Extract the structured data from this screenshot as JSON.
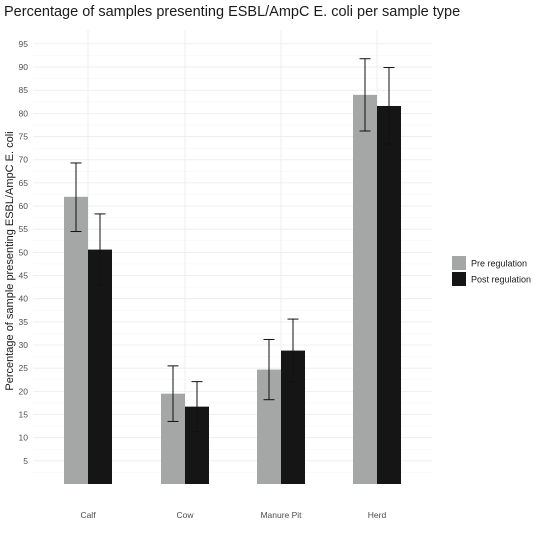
{
  "chart_data": {
    "type": "bar",
    "title": "Percentage of samples presenting ESBL/AmpC E. coli per sample type",
    "xlabel": "",
    "ylabel": "Percentage of sample presenting ESBL/AmpC E. coli",
    "ylim": [
      0,
      98
    ],
    "yticks": [
      5,
      10,
      15,
      20,
      25,
      30,
      35,
      40,
      45,
      50,
      55,
      60,
      65,
      70,
      75,
      80,
      85,
      90,
      95
    ],
    "grid": true,
    "legend_position": "right",
    "categories": [
      "Calf",
      "Cow",
      "Manure Pit",
      "Herd"
    ],
    "series": [
      {
        "name": "Pre regulation",
        "color": "#a4a7a6",
        "values": [
          62,
          19.5,
          24.7,
          84
        ],
        "error_low": [
          54.5,
          13.5,
          18.2,
          76.2
        ],
        "error_high": [
          69.3,
          25.5,
          31.2,
          91.8
        ]
      },
      {
        "name": "Post regulation",
        "color": "#151515",
        "values": [
          50.6,
          16.7,
          28.8,
          81.6
        ],
        "error_low": [
          43,
          11.3,
          22,
          73.4
        ],
        "error_high": [
          58.3,
          22.1,
          35.6,
          89.9
        ]
      }
    ]
  }
}
